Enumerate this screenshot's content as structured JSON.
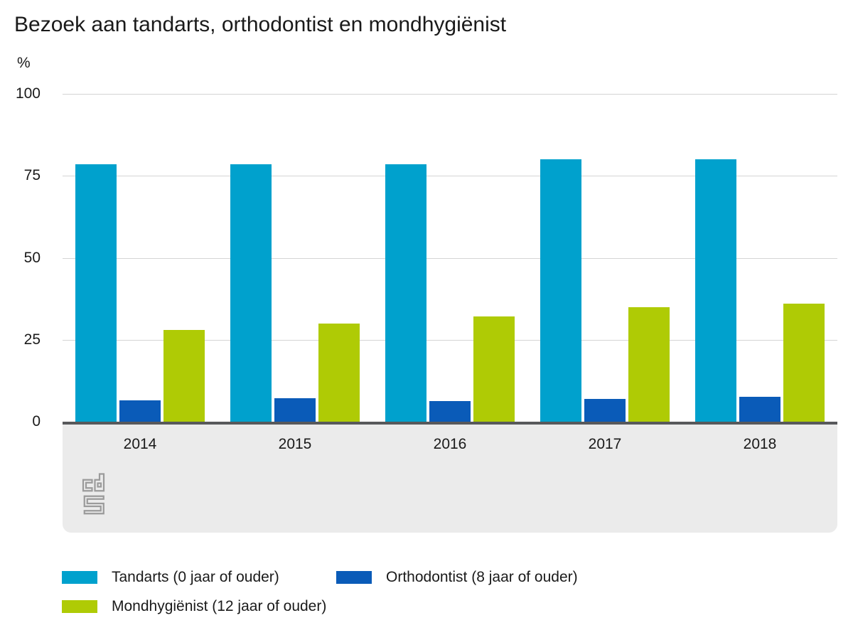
{
  "title": "Bezoek aan tandarts, orthodontist en mondhygiënist",
  "chart_data": {
    "type": "bar",
    "title": "Bezoek aan tandarts, orthodontist en mondhygiënist",
    "xlabel": "",
    "ylabel": "%",
    "ylim": [
      0,
      100
    ],
    "yticks": [
      0,
      25,
      50,
      75,
      100
    ],
    "grid": true,
    "legend_position": "bottom",
    "categories": [
      "2014",
      "2015",
      "2016",
      "2017",
      "2018"
    ],
    "series": [
      {
        "key": "tandarts",
        "name": "Tandarts (0 jaar of ouder)",
        "color": "#00a1cd",
        "values": [
          78.5,
          78.5,
          78.5,
          80,
          80
        ]
      },
      {
        "key": "orthodontist",
        "name": "Orthodontist (8 jaar of ouder)",
        "color": "#0a5bb8",
        "values": [
          6.5,
          7.2,
          6.4,
          7,
          7.7
        ]
      },
      {
        "key": "mondhygienist",
        "name": "Mondhygiënist (12 jaar of ouder)",
        "color": "#afcb05",
        "values": [
          28,
          30,
          32,
          35,
          36
        ]
      }
    ]
  },
  "source": {
    "logo_text": "cbs"
  },
  "colors": {
    "axis_line": "#58595b",
    "gridline": "#d4d4d4",
    "band_background": "#ebebeb",
    "logo_gray": "#9b9b9b",
    "text": "#1a1a1a",
    "background": "#ffffff"
  }
}
